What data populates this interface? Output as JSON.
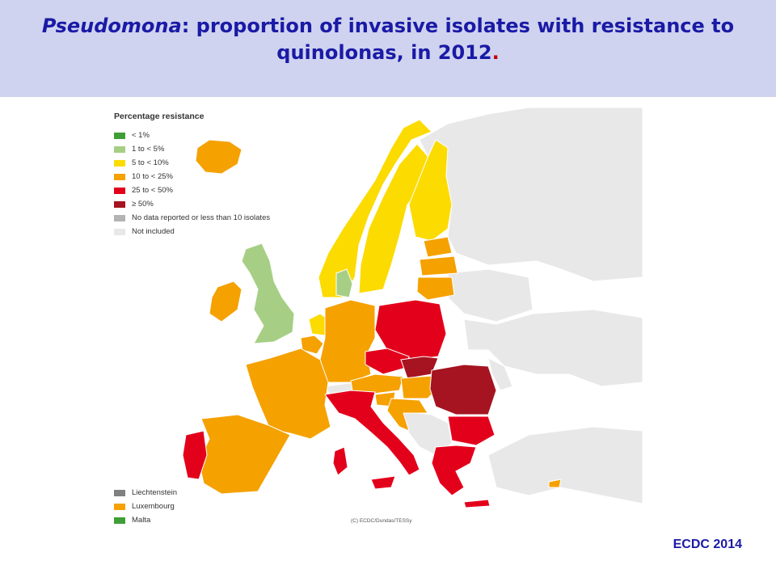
{
  "header": {
    "title_species": "Pseudomona",
    "title_rest": ": proportion of invasive isolates with resistance to quinolonas, in 2012",
    "title_dot": "."
  },
  "map": {
    "legend_title": "Percentage resistance",
    "legend": [
      {
        "label": "< 1%",
        "color": "#3f9e35"
      },
      {
        "label": "1 to < 5%",
        "color": "#a6cf85"
      },
      {
        "label": "5 to < 10%",
        "color": "#fcdb00"
      },
      {
        "label": "10 to < 25%",
        "color": "#f5a100"
      },
      {
        "label": "25 to < 50%",
        "color": "#e3001b"
      },
      {
        "label": "≥ 50%",
        "color": "#a51420"
      },
      {
        "label": "No data reported or less than 10 isolates",
        "color": "#b3b3b3"
      },
      {
        "label": "Not included",
        "color": "#e8e8e8"
      }
    ],
    "small_countries": [
      {
        "label": "Liechtenstein",
        "color": "#808080"
      },
      {
        "label": "Luxembourg",
        "color": "#f5a100"
      },
      {
        "label": "Malta",
        "color": "#3f9e35"
      }
    ],
    "copyright": "(C) ECDC/Dundas/TESSy",
    "not_included_color": "#e8e8e8",
    "border_color": "#ffffff",
    "countries": [
      {
        "name": "Iceland",
        "category": "10 to < 25%"
      },
      {
        "name": "Ireland",
        "category": "10 to < 25%"
      },
      {
        "name": "United Kingdom",
        "category": "1 to < 5%"
      },
      {
        "name": "Norway",
        "category": "5 to < 10%"
      },
      {
        "name": "Sweden",
        "category": "5 to < 10%"
      },
      {
        "name": "Finland",
        "category": "5 to < 10%"
      },
      {
        "name": "Denmark",
        "category": "1 to < 5%"
      },
      {
        "name": "Netherlands",
        "category": "5 to < 10%"
      },
      {
        "name": "Belgium",
        "category": "10 to < 25%"
      },
      {
        "name": "Estonia",
        "category": "10 to < 25%"
      },
      {
        "name": "Latvia",
        "category": "10 to < 25%"
      },
      {
        "name": "Lithuania",
        "category": "10 to < 25%"
      },
      {
        "name": "Poland",
        "category": "25 to < 50%"
      },
      {
        "name": "Germany",
        "category": "10 to < 25%"
      },
      {
        "name": "France",
        "category": "10 to < 25%"
      },
      {
        "name": "Spain",
        "category": "10 to < 25%"
      },
      {
        "name": "Portugal",
        "category": "25 to < 50%"
      },
      {
        "name": "Czech Republic",
        "category": "25 to < 50%"
      },
      {
        "name": "Slovakia",
        "category": "≥ 50%"
      },
      {
        "name": "Austria",
        "category": "10 to < 25%"
      },
      {
        "name": "Hungary",
        "category": "10 to < 25%"
      },
      {
        "name": "Slovenia",
        "category": "10 to < 25%"
      },
      {
        "name": "Croatia",
        "category": "10 to < 25%"
      },
      {
        "name": "Italy",
        "category": "25 to < 50%"
      },
      {
        "name": "Romania",
        "category": "≥ 50%"
      },
      {
        "name": "Bulgaria",
        "category": "25 to < 50%"
      },
      {
        "name": "Greece",
        "category": "25 to < 50%"
      },
      {
        "name": "Cyprus",
        "category": "10 to < 25%"
      }
    ]
  },
  "footer": {
    "source": "ECDC 2014"
  }
}
